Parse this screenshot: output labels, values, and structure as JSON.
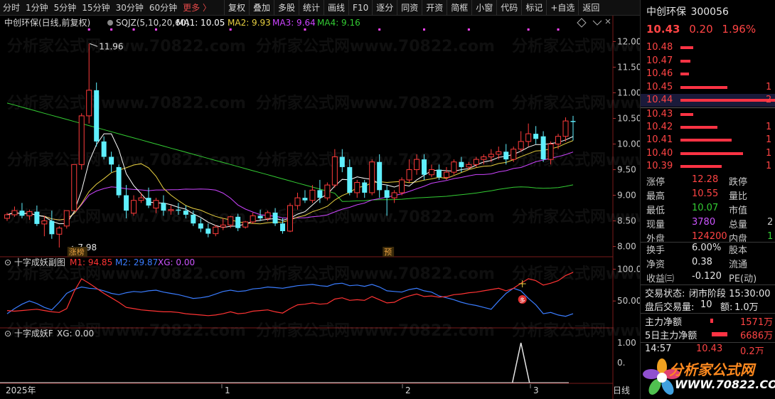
{
  "toolbar": {
    "timeframes": [
      "分时",
      "1分钟",
      "5分钟",
      "15分钟",
      "30分钟",
      "60分钟"
    ],
    "more": "更多 〉",
    "buttons": [
      "复权",
      "叠加",
      "多股",
      "统计",
      "画线",
      "F10",
      "逐分",
      "同资",
      "开资",
      "简框",
      "小窗",
      "代码",
      "标记",
      "+自选",
      "返回"
    ]
  },
  "chart_header": {
    "title": "中创环保(日线,前复权)",
    "indicator": "SQJZ(5,10,20,60)",
    "ma1": "MA1: 10.05",
    "ma2": "MA2: 9.93",
    "ma3": "MA3: 9.64",
    "ma4": "MA4: 9.16"
  },
  "annotations": {
    "high": "11.96",
    "low": "7.98",
    "badge1": "涨榜",
    "badge2": "预"
  },
  "sub1_header": {
    "name": "十字成妖副图",
    "m1": "M1: 94.85",
    "m2": "M2: 29.87",
    "xg": "XG: 0.00"
  },
  "sub2_header": {
    "name": "十字成妖F",
    "xg": "XG: 0.00"
  },
  "xaxis": {
    "labels": [
      "2025年",
      "1",
      "2",
      "3"
    ],
    "corner": "日线"
  },
  "watermarks": [
    "分析家公式网www.70822.com"
  ],
  "logo": {
    "line1": "分析家公式网",
    "line2": "WWW.70822.COM"
  },
  "colors": {
    "up": "#ff3b3b",
    "down": "#5ff0ff",
    "ma1": "#ffffff",
    "ma2": "#e8d040",
    "ma3": "#cc44ff",
    "ma4": "#33cc33",
    "m1": "#ff3333",
    "m2": "#3a7cff"
  },
  "chart_data": {
    "type": "candlestick",
    "price_axis": {
      "min": 8.0,
      "max": 12.0,
      "ticks": [
        12.0,
        11.5,
        11.0,
        10.5,
        10.0,
        9.5,
        9.0,
        8.5,
        8.0
      ]
    },
    "sub1_axis": {
      "ticks": [
        "100.0",
        "50.00"
      ]
    },
    "sub2_axis": {
      "ticks": [
        "1.00",
        "0."
      ]
    },
    "candles": [
      [
        8.55,
        8.66,
        8.62,
        8.5
      ],
      [
        8.62,
        8.78,
        8.7,
        8.58
      ],
      [
        8.7,
        8.85,
        8.6,
        8.55
      ],
      [
        8.6,
        8.72,
        8.68,
        8.52
      ],
      [
        8.68,
        8.8,
        8.44,
        8.4
      ],
      [
        8.44,
        8.6,
        8.5,
        8.2
      ],
      [
        8.5,
        8.7,
        8.24,
        8.15
      ],
      [
        8.24,
        8.4,
        8.36,
        7.98
      ],
      [
        8.4,
        8.55,
        8.7,
        8.35
      ],
      [
        8.7,
        9.6,
        9.6,
        8.7
      ],
      [
        9.6,
        10.6,
        10.55,
        9.5
      ],
      [
        10.55,
        11.96,
        11.05,
        10.4
      ],
      [
        11.05,
        11.2,
        10.05,
        9.95
      ],
      [
        10.05,
        10.15,
        9.75,
        9.7
      ],
      [
        9.75,
        9.85,
        9.6,
        9.45
      ],
      [
        9.55,
        9.6,
        9.0,
        8.95
      ],
      [
        9.0,
        9.2,
        8.7,
        8.55
      ],
      [
        8.65,
        9.0,
        8.9,
        8.6
      ],
      [
        8.9,
        9.05,
        8.95,
        8.85
      ],
      [
        8.95,
        9.15,
        8.8,
        8.75
      ],
      [
        8.75,
        8.95,
        8.9,
        8.65
      ],
      [
        8.85,
        9.0,
        8.7,
        8.6
      ],
      [
        8.7,
        8.8,
        8.72,
        8.62
      ],
      [
        8.72,
        8.85,
        8.7,
        8.62
      ],
      [
        8.7,
        8.8,
        8.62,
        8.55
      ],
      [
        8.62,
        8.7,
        8.45,
        8.4
      ],
      [
        8.45,
        8.55,
        8.35,
        8.28
      ],
      [
        8.35,
        8.45,
        8.25,
        8.18
      ],
      [
        8.25,
        8.42,
        8.38,
        8.2
      ],
      [
        8.38,
        8.55,
        8.42,
        8.32
      ],
      [
        8.42,
        8.6,
        8.58,
        8.36
      ],
      [
        8.58,
        8.64,
        8.36,
        8.3
      ],
      [
        8.38,
        8.5,
        8.48,
        8.35
      ],
      [
        8.48,
        8.66,
        8.6,
        8.44
      ],
      [
        8.6,
        8.72,
        8.55,
        8.5
      ],
      [
        8.55,
        8.7,
        8.66,
        8.5
      ],
      [
        8.66,
        8.75,
        8.45,
        8.4
      ],
      [
        8.45,
        8.55,
        8.3,
        8.25
      ],
      [
        8.3,
        8.85,
        8.8,
        8.28
      ],
      [
        8.8,
        9.05,
        8.95,
        8.72
      ],
      [
        8.95,
        9.1,
        8.9,
        8.85
      ],
      [
        8.9,
        9.2,
        9.1,
        8.85
      ],
      [
        9.1,
        9.3,
        8.95,
        8.85
      ],
      [
        8.95,
        9.25,
        9.2,
        8.9
      ],
      [
        9.2,
        9.9,
        9.75,
        9.15
      ],
      [
        9.75,
        9.9,
        9.55,
        9.45
      ],
      [
        9.55,
        9.7,
        9.05,
        9.0
      ],
      [
        9.05,
        9.3,
        9.25,
        8.95
      ],
      [
        9.25,
        9.3,
        9.05,
        8.95
      ],
      [
        9.05,
        9.7,
        9.65,
        9.0
      ],
      [
        9.65,
        9.8,
        9.1,
        8.95
      ],
      [
        9.1,
        9.2,
        8.95,
        8.6
      ],
      [
        8.95,
        9.1,
        9.05,
        8.85
      ],
      [
        9.05,
        9.35,
        9.3,
        9.0
      ],
      [
        9.3,
        9.7,
        9.5,
        9.25
      ],
      [
        9.5,
        9.8,
        9.7,
        9.4
      ],
      [
        9.7,
        9.8,
        9.4,
        9.3
      ],
      [
        9.4,
        9.6,
        9.5,
        9.35
      ],
      [
        9.5,
        9.6,
        9.35,
        9.3
      ],
      [
        9.35,
        9.55,
        9.45,
        9.3
      ],
      [
        9.45,
        9.7,
        9.65,
        9.4
      ],
      [
        9.65,
        9.75,
        9.55,
        9.45
      ],
      [
        9.55,
        9.65,
        9.6,
        9.5
      ],
      [
        9.6,
        9.75,
        9.7,
        9.55
      ],
      [
        9.7,
        9.8,
        9.75,
        9.6
      ],
      [
        9.75,
        9.9,
        9.8,
        9.65
      ],
      [
        9.8,
        9.95,
        9.85,
        9.7
      ],
      [
        9.85,
        10.0,
        9.7,
        9.6
      ],
      [
        9.7,
        9.95,
        9.9,
        9.65
      ],
      [
        9.9,
        10.25,
        10.05,
        9.85
      ],
      [
        10.05,
        10.4,
        10.2,
        9.95
      ],
      [
        10.2,
        10.35,
        10.1,
        10.0
      ],
      [
        10.15,
        10.25,
        9.7,
        9.65
      ],
      [
        9.7,
        10.05,
        10.0,
        9.6
      ],
      [
        10.0,
        10.2,
        10.15,
        9.9
      ],
      [
        10.15,
        10.52,
        10.45,
        10.05
      ],
      [
        10.45,
        10.55,
        10.43,
        10.07
      ]
    ],
    "m1": [
      35,
      34,
      35,
      36,
      37,
      35,
      33,
      32,
      38,
      65,
      85,
      78,
      70,
      62,
      55,
      48,
      40,
      38,
      36,
      35,
      34,
      33,
      33,
      32,
      30,
      29,
      28,
      27,
      28,
      30,
      33,
      30,
      31,
      34,
      35,
      36,
      33,
      31,
      38,
      44,
      45,
      47,
      45,
      46,
      53,
      55,
      51,
      52,
      51,
      57,
      52,
      47,
      48,
      54,
      58,
      61,
      57,
      58,
      56,
      57,
      60,
      61,
      63,
      64,
      66,
      68,
      70,
      66,
      70,
      78,
      85,
      82,
      75,
      78,
      82,
      90,
      95
    ],
    "m2": [
      30,
      38,
      45,
      50,
      46,
      40,
      36,
      48,
      62,
      68,
      72,
      70,
      69,
      66,
      62,
      60,
      63,
      65,
      64,
      66,
      67,
      64,
      62,
      60,
      57,
      54,
      55,
      57,
      61,
      65,
      67,
      65,
      66,
      69,
      70,
      72,
      71,
      70,
      72,
      74,
      75,
      76,
      74,
      73,
      77,
      78,
      74,
      75,
      73,
      76,
      72,
      66,
      65,
      64,
      68,
      70,
      66,
      64,
      58,
      55,
      52,
      48,
      45,
      43,
      40,
      37,
      50,
      62,
      70,
      66,
      54,
      44,
      30,
      32,
      28,
      26,
      30
    ]
  }
}
